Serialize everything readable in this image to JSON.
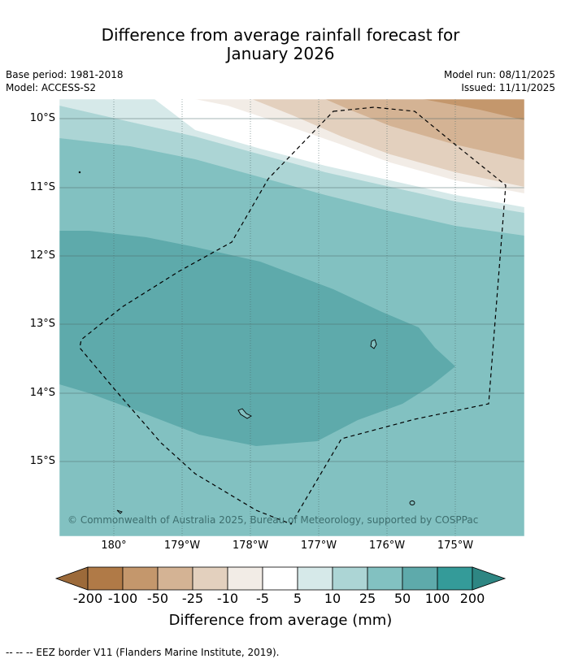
{
  "title_line1": "Difference from average rainfall forecast for",
  "title_line2": "January 2026",
  "meta": {
    "base_period": "Base period: 1981-2018",
    "model": "Model: ACCESS-S2",
    "model_run": "Model run: 08/11/2025",
    "issued": "Issued: 11/11/2025"
  },
  "map": {
    "lat_labels": [
      "10°S",
      "11°S",
      "12°S",
      "13°S",
      "14°S",
      "15°S"
    ],
    "lon_labels": [
      "180°",
      "179°W",
      "178°W",
      "177°W",
      "176°W",
      "175°W"
    ],
    "copyright": "© Commonwealth of Australia 2025, Bureau of Meteorology, supported by COSPPac",
    "colors": {
      "brown_dark": "#b07a47",
      "brown_mid": "#c4976c",
      "tan": "#e3d0be",
      "cream": "#f2ece6",
      "white": "#ffffff",
      "teal_pale": "#d6e9e9",
      "teal_light": "#acd5d5",
      "teal_mid": "#82c1c1",
      "teal_dark": "#5eaaab",
      "teal_deep": "#349b99"
    }
  },
  "colorbar": {
    "ticks": [
      "-200",
      "-100",
      "-50",
      "-25",
      "-10",
      "-5",
      "5",
      "10",
      "25",
      "50",
      "100",
      "200"
    ],
    "colors": [
      "#b07a47",
      "#c4976c",
      "#d4b394",
      "#e3d0be",
      "#f2ece6",
      "#ffffff",
      "#d6e9e9",
      "#acd5d5",
      "#82c1c1",
      "#5eaaab",
      "#349b99"
    ],
    "under_color": "#9c6a3a",
    "over_color": "#2e8683",
    "title": "Difference from average (mm)"
  },
  "footnote": "--  --  -- EEZ border V11 (Flanders Marine Institute, 2019)."
}
